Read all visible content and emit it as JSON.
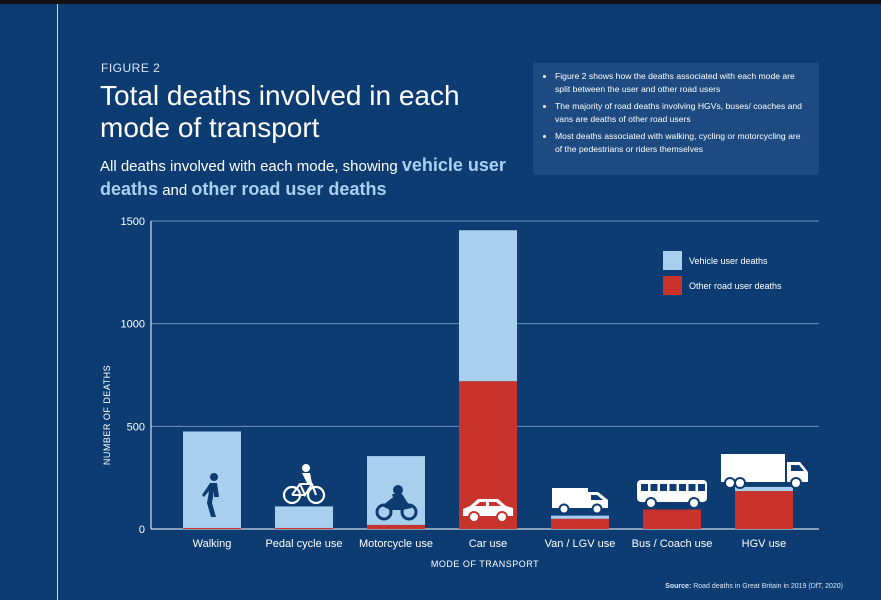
{
  "header": {
    "figure_label": "FIGURE 2",
    "title": "Total deaths involved in each mode of transport",
    "subtitle_prefix": "All deaths involved with each mode, showing",
    "subtitle_vehicle": "vehicle user deaths",
    "subtitle_and": "and",
    "subtitle_other": "other road user deaths"
  },
  "notes": [
    "Figure 2 shows how the deaths associated with each mode are split between the user and other road users",
    "The majority of road deaths involving HGVs, buses/ coaches and vans are deaths of other road users",
    "Most deaths associated with walking, cycling or motorcycling are of the pedestrians or riders themselves"
  ],
  "source": {
    "label": "Source:",
    "text": "Road deaths in Great Britain in 2019 (DfT, 2020)"
  },
  "colors": {
    "background": "#0d3c73",
    "vehicle_user": "#a8d0ee",
    "other_road_user": "#c8332c",
    "gridline": "#6f8fb8"
  },
  "chart_data": {
    "type": "bar",
    "stacked": true,
    "title": "",
    "xlabel": "MODE OF TRANSPORT",
    "ylabel": "NUMBER OF DEATHS",
    "ylim": [
      0,
      1500
    ],
    "yticks": [
      0,
      500,
      1000,
      1500
    ],
    "grid": true,
    "legend_position": "top-right",
    "categories": [
      "Walking",
      "Pedal cycle use",
      "Motorcycle use",
      "Car use",
      "Van / LGV use",
      "Bus / Coach use",
      "HGV use"
    ],
    "icons": [
      "pedestrian-icon",
      "bicycle-icon",
      "motorcycle-icon",
      "car-icon",
      "van-icon",
      "bus-icon",
      "lorry-icon"
    ],
    "series": [
      {
        "name": "Other road user deaths",
        "color": "#c8332c",
        "values": [
          5,
          5,
          20,
          720,
          50,
          95,
          185
        ]
      },
      {
        "name": "Vehicle user deaths",
        "color": "#a8d0ee",
        "values": [
          470,
          105,
          335,
          735,
          15,
          0,
          20
        ]
      }
    ]
  }
}
